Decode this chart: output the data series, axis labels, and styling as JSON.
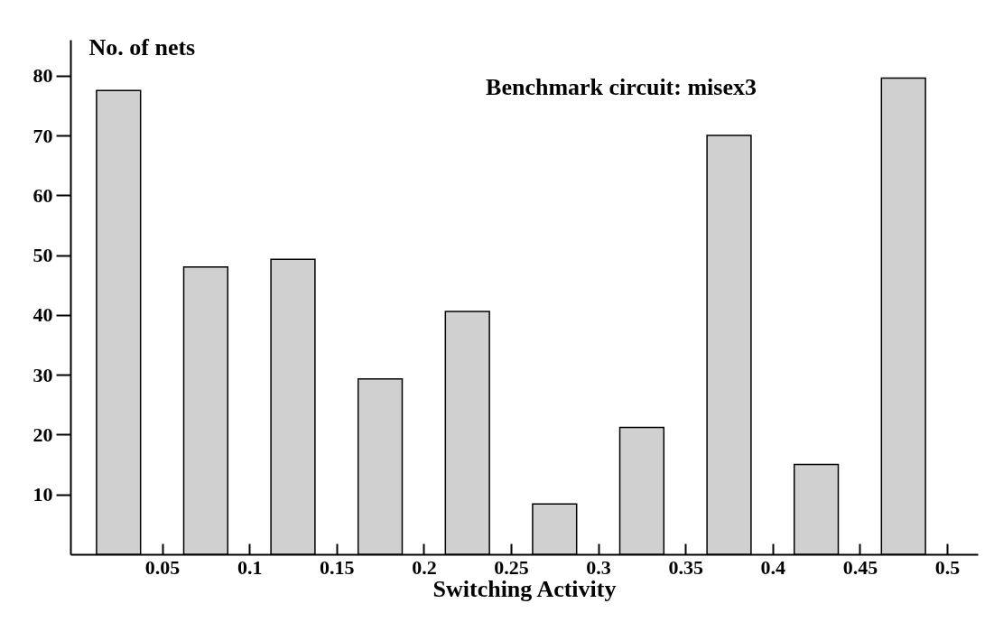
{
  "chart_data": {
    "type": "histogram",
    "xlabel": "Switching Activity",
    "ylabel": "No. of nets",
    "annotations": [
      "Benchmark circuit: misex3"
    ],
    "bins": [
      0,
      0.05,
      0.1,
      0.15,
      0.2,
      0.25,
      0.3,
      0.35,
      0.4,
      0.45,
      0.5
    ],
    "values": [
      77.5,
      48,
      49.3,
      29.3,
      40.6,
      8.4,
      21.2,
      70,
      15,
      79.6
    ],
    "color": "#d0d0d0",
    "xlim": [
      0,
      0.515
    ],
    "ylim": [
      0,
      86
    ],
    "xticks": [
      0.05,
      0.1,
      0.15,
      0.2,
      0.25,
      0.3,
      0.35,
      0.4,
      0.45,
      0.5
    ],
    "yticks": [
      10,
      20,
      30,
      40,
      50,
      60,
      70,
      80
    ]
  }
}
